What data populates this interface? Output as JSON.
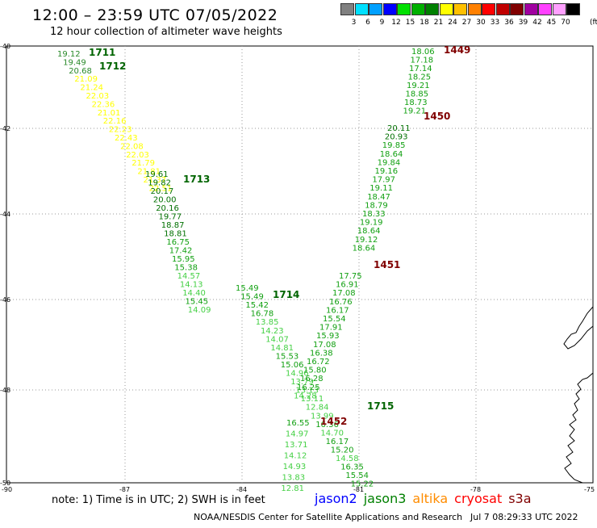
{
  "title": "12:00 – 23:59 UTC 07/05/2022",
  "subtitle": "12 hour collection of altimeter wave heights",
  "legend": {
    "unit": "(ft)",
    "bins": [
      {
        "label": "3",
        "color": "#808080"
      },
      {
        "label": "6",
        "color": "#00e0ff"
      },
      {
        "label": "9",
        "color": "#00a0ff"
      },
      {
        "label": "12",
        "color": "#0000ff"
      },
      {
        "label": "15",
        "color": "#00e000"
      },
      {
        "label": "18",
        "color": "#00b000"
      },
      {
        "label": "21",
        "color": "#008000"
      },
      {
        "label": "24",
        "color": "#ffff00"
      },
      {
        "label": "27",
        "color": "#ffc000"
      },
      {
        "label": "30",
        "color": "#ff8000"
      },
      {
        "label": "33",
        "color": "#ff0000"
      },
      {
        "label": "36",
        "color": "#c00000"
      },
      {
        "label": "39",
        "color": "#800000"
      },
      {
        "label": "42",
        "color": "#a000a0"
      },
      {
        "label": "45",
        "color": "#ff40ff"
      },
      {
        "label": "70",
        "color": "#ffa0ff"
      },
      {
        "label": "",
        "color": "#000000"
      }
    ]
  },
  "map": {
    "lat_labels": [
      "-40",
      "-42",
      "-44",
      "-46",
      "-48",
      "-50"
    ],
    "lon_labels": [
      "-90",
      "-87",
      "-84",
      "-81",
      "-78",
      "-75"
    ],
    "tracks": [
      {
        "time": "1711",
        "color": "#006400",
        "points": [
          {
            "v": "19.12",
            "c": "#2a8a2a"
          },
          {
            "v": "19.49",
            "c": "#2a8a2a"
          },
          {
            "v": "20.68",
            "c": "#2a8a2a"
          },
          {
            "v": "21.09",
            "c": "#ffff00"
          },
          {
            "v": "21.24",
            "c": "#ffff00"
          },
          {
            "v": "22.03",
            "c": "#ffff00"
          },
          {
            "v": "22.36",
            "c": "#ffff00"
          },
          {
            "v": "21.01",
            "c": "#ffff00"
          },
          {
            "v": "22.16",
            "c": "#ffff00"
          },
          {
            "v": "22.23",
            "c": "#ffff00"
          },
          {
            "v": "22.43",
            "c": "#ffff00"
          },
          {
            "v": "22.08",
            "c": "#ffff00"
          },
          {
            "v": "22.03",
            "c": "#ffff00"
          },
          {
            "v": "21.79",
            "c": "#ffff00"
          },
          {
            "v": "21.81",
            "c": "#ffff00"
          },
          {
            "v": "21.37",
            "c": "#ffff00"
          },
          {
            "v": "22.51",
            "c": "#ffff00"
          }
        ]
      },
      {
        "time": "1712",
        "color": "#006400"
      },
      {
        "time": "1713",
        "color": "#006400",
        "points": [
          {
            "v": "19.61",
            "c": "#007000"
          },
          {
            "v": "19.82",
            "c": "#007000"
          },
          {
            "v": "20.17",
            "c": "#007000"
          },
          {
            "v": "20.00",
            "c": "#007000"
          },
          {
            "v": "20.16",
            "c": "#007000"
          },
          {
            "v": "19.77",
            "c": "#007000"
          },
          {
            "v": "18.87",
            "c": "#007000"
          },
          {
            "v": "18.81",
            "c": "#007000"
          },
          {
            "v": "16.75",
            "c": "#11a011"
          },
          {
            "v": "17.42",
            "c": "#11a011"
          },
          {
            "v": "15.95",
            "c": "#11a011"
          },
          {
            "v": "15.38",
            "c": "#11a011"
          },
          {
            "v": "14.57",
            "c": "#44d044"
          },
          {
            "v": "14.13",
            "c": "#44d044"
          },
          {
            "v": "14.40",
            "c": "#44d044"
          },
          {
            "v": "15.45",
            "c": "#11a011"
          },
          {
            "v": "14.09",
            "c": "#44d044"
          }
        ]
      },
      {
        "time": "1714",
        "color": "#006400",
        "points": [
          {
            "v": "15.49",
            "c": "#11a011"
          },
          {
            "v": "15.49",
            "c": "#11a011"
          },
          {
            "v": "15.42",
            "c": "#11a011"
          },
          {
            "v": "16.78",
            "c": "#11a011"
          },
          {
            "v": "13.85",
            "c": "#44d044"
          },
          {
            "v": "14.23",
            "c": "#44d044"
          },
          {
            "v": "14.07",
            "c": "#44d044"
          },
          {
            "v": "14.81",
            "c": "#44d044"
          },
          {
            "v": "15.53",
            "c": "#11a011"
          },
          {
            "v": "15.06",
            "c": "#11a011"
          },
          {
            "v": "14.96",
            "c": "#44d044"
          },
          {
            "v": "13.79",
            "c": "#44d044"
          },
          {
            "v": "13.13",
            "c": "#44d044"
          },
          {
            "v": "13.11",
            "c": "#44d044"
          },
          {
            "v": "12.84",
            "c": "#44d044"
          },
          {
            "v": "13.99",
            "c": "#44d044"
          },
          {
            "v": "16.36",
            "c": "#11a011"
          },
          {
            "v": "14.70",
            "c": "#44d044"
          },
          {
            "v": "16.17",
            "c": "#11a011"
          },
          {
            "v": "15.20",
            "c": "#11a011"
          },
          {
            "v": "14.58",
            "c": "#44d044"
          },
          {
            "v": "16.35",
            "c": "#11a011"
          },
          {
            "v": "15.54",
            "c": "#11a011"
          },
          {
            "v": "15.22",
            "c": "#11a011"
          }
        ]
      },
      {
        "time": "1715",
        "color": "#006400"
      },
      {
        "time": "1449",
        "color": "#800000",
        "points": [
          {
            "v": "18.06",
            "c": "#11a011"
          },
          {
            "v": "17.18",
            "c": "#11a011"
          },
          {
            "v": "17.14",
            "c": "#11a011"
          },
          {
            "v": "18.25",
            "c": "#11a011"
          },
          {
            "v": "19.21",
            "c": "#11a011"
          },
          {
            "v": "18.85",
            "c": "#11a011"
          },
          {
            "v": "18.73",
            "c": "#11a011"
          },
          {
            "v": "19.21",
            "c": "#11a011"
          }
        ]
      },
      {
        "time": "1450",
        "color": "#800000",
        "points": [
          {
            "v": "20.11",
            "c": "#007000"
          },
          {
            "v": "20.93",
            "c": "#007000"
          },
          {
            "v": "19.85",
            "c": "#11a011"
          },
          {
            "v": "18.64",
            "c": "#11a011"
          },
          {
            "v": "19.84",
            "c": "#11a011"
          },
          {
            "v": "19.16",
            "c": "#11a011"
          },
          {
            "v": "17.97",
            "c": "#11a011"
          },
          {
            "v": "19.11",
            "c": "#11a011"
          },
          {
            "v": "18.47",
            "c": "#11a011"
          },
          {
            "v": "18.79",
            "c": "#11a011"
          },
          {
            "v": "18.33",
            "c": "#11a011"
          },
          {
            "v": "19.19",
            "c": "#11a011"
          },
          {
            "v": "18.64",
            "c": "#11a011"
          },
          {
            "v": "19.12",
            "c": "#11a011"
          },
          {
            "v": "18.64",
            "c": "#11a011"
          }
        ]
      },
      {
        "time": "1451",
        "color": "#800000",
        "points": [
          {
            "v": "17.75",
            "c": "#11a011"
          },
          {
            "v": "16.91",
            "c": "#11a011"
          },
          {
            "v": "17.08",
            "c": "#11a011"
          },
          {
            "v": "16.76",
            "c": "#11a011"
          },
          {
            "v": "16.17",
            "c": "#11a011"
          },
          {
            "v": "15.54",
            "c": "#11a011"
          },
          {
            "v": "17.91",
            "c": "#11a011"
          },
          {
            "v": "15.93",
            "c": "#11a011"
          },
          {
            "v": "17.08",
            "c": "#11a011"
          },
          {
            "v": "16.38",
            "c": "#11a011"
          },
          {
            "v": "16.72",
            "c": "#11a011"
          },
          {
            "v": "15.80",
            "c": "#11a011"
          },
          {
            "v": "16.28",
            "c": "#11a011"
          },
          {
            "v": "16.25",
            "c": "#11a011"
          },
          {
            "v": "14.28",
            "c": "#44d044"
          }
        ]
      },
      {
        "time": "1452",
        "color": "#800000",
        "points": [
          {
            "v": "16.55",
            "c": "#11a011"
          },
          {
            "v": "14.97",
            "c": "#44d044"
          },
          {
            "v": "13.71",
            "c": "#44d044"
          },
          {
            "v": "14.12",
            "c": "#44d044"
          },
          {
            "v": "14.93",
            "c": "#44d044"
          },
          {
            "v": "13.83",
            "c": "#44d044"
          },
          {
            "v": "12.81",
            "c": "#44d044"
          }
        ]
      }
    ]
  },
  "note": "note:  1) Time is in UTC; 2) SWH is in feet",
  "satellites": [
    {
      "name": "jason2",
      "color": "#0000ff"
    },
    {
      "name": "jason3",
      "color": "#008000"
    },
    {
      "name": "altika",
      "color": "#ff8c00"
    },
    {
      "name": "cryosat",
      "color": "#ff0000"
    },
    {
      "name": "s3a",
      "color": "#800000"
    }
  ],
  "footer": {
    "org": "NOAA/NESDIS Center for Satellite Applications and Research",
    "time": "Jul  7 08:29:33 UTC 2022"
  }
}
